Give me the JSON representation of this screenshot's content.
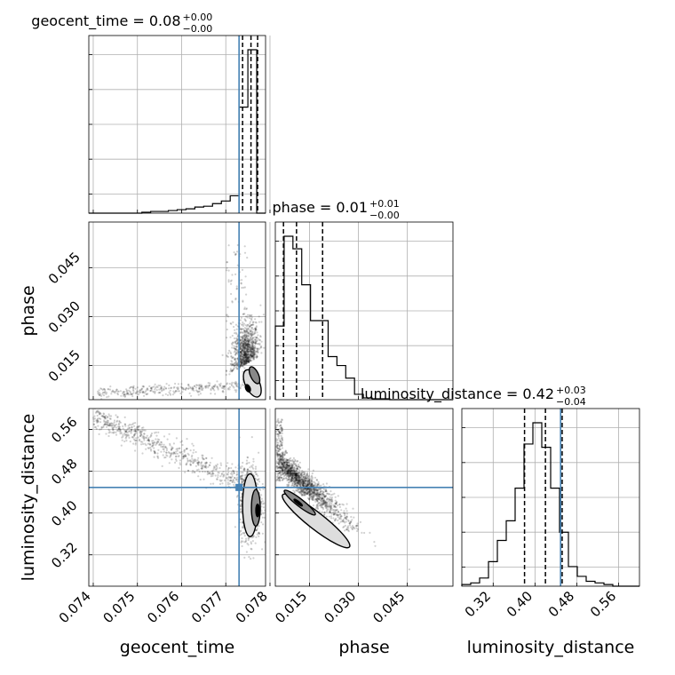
{
  "chart_data": {
    "type": "corner",
    "params": [
      {
        "key": "geocent_time",
        "label": "geocent_time",
        "title_name": "geocent_time",
        "title_value": "0.08",
        "title_plus": "+0.00",
        "title_minus": "−0.00",
        "range": [
          0.0739,
          0.0779
        ],
        "ticks": [
          0.074,
          0.075,
          0.076,
          0.077,
          0.078
        ],
        "tick_labels": [
          "0.074",
          "0.075",
          "0.076",
          "0.077",
          "0.078"
        ],
        "quantiles": [
          0.07738,
          0.07757,
          0.07772
        ],
        "truth": 0.0773,
        "hist_edges": [
          0.0739,
          0.0741,
          0.0743,
          0.0745,
          0.0747,
          0.0749,
          0.0751,
          0.0753,
          0.0755,
          0.0757,
          0.0759,
          0.0761,
          0.0763,
          0.0765,
          0.0767,
          0.0769,
          0.0771,
          0.0773,
          0.0775,
          0.0777,
          0.0779
        ],
        "hist_counts": [
          0,
          0,
          0,
          0,
          0,
          0,
          0.5,
          1,
          1,
          1.5,
          2,
          2.5,
          3.5,
          4,
          5.5,
          7,
          10,
          61,
          94,
          0
        ]
      },
      {
        "key": "phase",
        "label": "phase",
        "title_name": "phase",
        "title_value": "0.01",
        "title_plus": "+0.01",
        "title_minus": "−0.00",
        "range": [
          0.0045,
          0.059
        ],
        "ticks": [
          0.015,
          0.03,
          0.045
        ],
        "tick_labels": [
          "0.015",
          "0.030",
          "0.045"
        ],
        "quantiles": [
          0.007,
          0.011,
          0.019
        ],
        "truth": null,
        "hist_edges": [
          0.0045,
          0.0072,
          0.0099,
          0.0126,
          0.0153,
          0.018,
          0.0207,
          0.0234,
          0.0261,
          0.0288,
          0.0315,
          0.0342,
          0.0369,
          0.0396,
          0.0423,
          0.045,
          0.0477,
          0.0504,
          0.0531,
          0.0558,
          0.059
        ],
        "hist_counts": [
          41,
          91,
          84,
          64,
          44,
          44,
          24,
          19,
          12,
          3,
          1,
          0.5,
          0.5,
          0,
          0,
          0,
          0,
          0,
          0,
          0
        ]
      },
      {
        "key": "luminosity_distance",
        "label": "luminosity_distance",
        "title_name": "luminosity_distance",
        "title_value": "0.42",
        "title_plus": "+0.03",
        "title_minus": "−0.04",
        "range": [
          0.26,
          0.6
        ],
        "ticks": [
          0.32,
          0.4,
          0.48,
          0.56
        ],
        "tick_labels": [
          "0.32",
          "0.40",
          "0.48",
          "0.56"
        ],
        "quantiles": [
          0.38,
          0.42,
          0.452
        ],
        "truth": 0.449,
        "hist_edges": [
          0.26,
          0.277,
          0.294,
          0.311,
          0.328,
          0.345,
          0.362,
          0.379,
          0.396,
          0.413,
          0.43,
          0.447,
          0.464,
          0.481,
          0.498,
          0.515,
          0.532,
          0.549,
          0.566,
          0.583,
          0.6
        ],
        "hist_counts": [
          1,
          2,
          5,
          15,
          28,
          40,
          60,
          87,
          100,
          85,
          60,
          33,
          12,
          6,
          3,
          2,
          1,
          0,
          0,
          0
        ]
      }
    ],
    "truth_color": "#4682b4",
    "grid": true
  }
}
